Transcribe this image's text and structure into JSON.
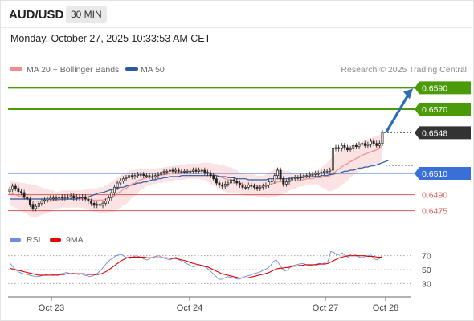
{
  "header": {
    "symbol": "AUD/USD",
    "timeframe": "30 MIN",
    "datetime": "Monday, October 27, 2025 10:33:53 AM CET"
  },
  "copyright": "Research © 2025 Trading Central",
  "colors": {
    "bollinger": "#f08c8c",
    "ma50": "#2b5a9e",
    "target": "#4a9a0a",
    "pivot": "#3a6fd8",
    "support": "#d85a5a",
    "last": "#333333",
    "arrow": "#2d6bb3",
    "rsi": "#6a8ee0",
    "rsi_ma": "#e00000"
  },
  "chart_data": [
    {
      "type": "candlestick",
      "title": "AUD/USD",
      "timeframe": "30 MIN",
      "legend": [
        {
          "name": "MA 20 + Bollinger Bands",
          "color": "#f08c8c"
        },
        {
          "name": "MA 50",
          "color": "#2b5a9e"
        }
      ],
      "x_ticks": [
        "Oct 23",
        "Oct 24",
        "Oct 27",
        "Oct 28"
      ],
      "ylim": [
        0.6462,
        0.66
      ],
      "levels": [
        {
          "value": 0.659,
          "label": "0.6590",
          "kind": "target",
          "color": "#4a9a0a"
        },
        {
          "value": 0.657,
          "label": "0.6570",
          "kind": "target",
          "color": "#4a9a0a"
        },
        {
          "value": 0.6548,
          "label": "0.6548",
          "kind": "last",
          "color": "#333333"
        },
        {
          "value": 0.651,
          "label": "0.6510",
          "kind": "pivot",
          "color": "#3a6fd8"
        },
        {
          "value": 0.649,
          "label": "0.6490",
          "kind": "support",
          "color": "#d85a5a"
        },
        {
          "value": 0.6475,
          "label": "0.6475",
          "kind": "support",
          "color": "#d85a5a"
        }
      ],
      "close": [
        0.6495,
        0.6498,
        0.6496,
        0.6493,
        0.6492,
        0.6488,
        0.6486,
        0.6481,
        0.6477,
        0.6479,
        0.6482,
        0.6484,
        0.6485,
        0.6486,
        0.6487,
        0.6487,
        0.6487,
        0.6488,
        0.6487,
        0.6488,
        0.6488,
        0.6489,
        0.6487,
        0.6488,
        0.6487,
        0.6488,
        0.6486,
        0.6484,
        0.6482,
        0.648,
        0.6481,
        0.648,
        0.6482,
        0.6484,
        0.6487,
        0.6492,
        0.6497,
        0.6501,
        0.6503,
        0.6505,
        0.6506,
        0.6508,
        0.6507,
        0.6508,
        0.6509,
        0.6509,
        0.6508,
        0.6508,
        0.6507,
        0.6507,
        0.6508,
        0.6509,
        0.6511,
        0.6512,
        0.6512,
        0.6513,
        0.6512,
        0.6513,
        0.6512,
        0.6512,
        0.6512,
        0.6512,
        0.6512,
        0.6513,
        0.6512,
        0.6513,
        0.6513,
        0.6511,
        0.651,
        0.6508,
        0.6505,
        0.6501,
        0.6499,
        0.6498,
        0.65,
        0.6501,
        0.6504,
        0.6503,
        0.6501,
        0.6499,
        0.6497,
        0.6497,
        0.6499,
        0.6498,
        0.6497,
        0.6496,
        0.6497,
        0.6498,
        0.6499,
        0.6502,
        0.6503,
        0.6508,
        0.6513,
        0.6505,
        0.65,
        0.6502,
        0.6504,
        0.6505,
        0.6506,
        0.6506,
        0.6507,
        0.6508,
        0.6508,
        0.6509,
        0.6509,
        0.651,
        0.651,
        0.6511,
        0.6512,
        0.6512,
        0.6513,
        0.6533,
        0.6534,
        0.6533,
        0.6536,
        0.6534,
        0.6532,
        0.6533,
        0.6536,
        0.6535,
        0.6537,
        0.6538,
        0.6536,
        0.6537,
        0.654,
        0.6538,
        0.6536,
        0.6538,
        0.6548
      ],
      "ma20": [
        0.6492,
        0.6491,
        0.649,
        0.6489,
        0.6488,
        0.6487,
        0.6486,
        0.6485,
        0.6484,
        0.6484,
        0.6484,
        0.6484,
        0.6484,
        0.6484,
        0.6484,
        0.6485,
        0.6485,
        0.6485,
        0.6486,
        0.6486,
        0.6486,
        0.6486,
        0.6486,
        0.6486,
        0.6486,
        0.6486,
        0.6486,
        0.6486,
        0.6485,
        0.6485,
        0.6485,
        0.6485,
        0.6485,
        0.6486,
        0.6487,
        0.6488,
        0.6489,
        0.6491,
        0.6493,
        0.6495,
        0.6496,
        0.6498,
        0.65,
        0.6501,
        0.6503,
        0.6504,
        0.6505,
        0.6506,
        0.6506,
        0.6507,
        0.6507,
        0.6508,
        0.6508,
        0.6509,
        0.6509,
        0.651,
        0.651,
        0.6511,
        0.6511,
        0.6511,
        0.6511,
        0.6512,
        0.6512,
        0.6512,
        0.6512,
        0.6512,
        0.6512,
        0.6512,
        0.6511,
        0.651,
        0.6509,
        0.6508,
        0.6507,
        0.6506,
        0.6505,
        0.6504,
        0.6504,
        0.6503,
        0.6502,
        0.6501,
        0.65,
        0.6499,
        0.6499,
        0.6499,
        0.6499,
        0.6498,
        0.6498,
        0.6498,
        0.6498,
        0.6499,
        0.65,
        0.6501,
        0.6502,
        0.6502,
        0.6502,
        0.6502,
        0.6503,
        0.6503,
        0.6503,
        0.6503,
        0.6504,
        0.6504,
        0.6505,
        0.6505,
        0.6505,
        0.6506,
        0.6506,
        0.6506,
        0.6507,
        0.6507,
        0.6508,
        0.651,
        0.6512,
        0.6514,
        0.6516,
        0.6518,
        0.6519,
        0.6521,
        0.6522,
        0.6524,
        0.6525,
        0.6527,
        0.6528,
        0.6529,
        0.653,
        0.6531,
        0.6532,
        0.6533,
        0.6536
      ],
      "bb_width": [
        0.0012,
        0.0012,
        0.0012,
        0.0013,
        0.0013,
        0.0014,
        0.0014,
        0.0015,
        0.0015,
        0.0015,
        0.0014,
        0.0013,
        0.0012,
        0.0011,
        0.001,
        0.0009,
        0.0008,
        0.0008,
        0.0008,
        0.0008,
        0.0008,
        0.0008,
        0.0008,
        0.0008,
        0.0008,
        0.0008,
        0.0009,
        0.001,
        0.001,
        0.0011,
        0.0011,
        0.0012,
        0.0012,
        0.0013,
        0.0013,
        0.0014,
        0.0015,
        0.0015,
        0.0015,
        0.0015,
        0.0015,
        0.0014,
        0.0013,
        0.0012,
        0.0011,
        0.001,
        0.0009,
        0.0008,
        0.0008,
        0.0007,
        0.0007,
        0.0007,
        0.0007,
        0.0007,
        0.0007,
        0.0007,
        0.0007,
        0.0007,
        0.0007,
        0.0007,
        0.0007,
        0.0007,
        0.0007,
        0.0007,
        0.0007,
        0.0007,
        0.0008,
        0.0008,
        0.0009,
        0.001,
        0.001,
        0.0011,
        0.0011,
        0.0012,
        0.0012,
        0.0012,
        0.0012,
        0.0011,
        0.0011,
        0.001,
        0.001,
        0.001,
        0.001,
        0.001,
        0.001,
        0.001,
        0.001,
        0.001,
        0.0011,
        0.0012,
        0.0012,
        0.0013,
        0.0013,
        0.0012,
        0.0011,
        0.001,
        0.0009,
        0.0008,
        0.0007,
        0.0006,
        0.0006,
        0.0006,
        0.0006,
        0.0006,
        0.0006,
        0.0006,
        0.0007,
        0.0009,
        0.0011,
        0.0013,
        0.0015,
        0.0016,
        0.0017,
        0.0017,
        0.0017,
        0.0017,
        0.0016,
        0.0015,
        0.0014,
        0.0014,
        0.0013,
        0.0013,
        0.0013,
        0.0013,
        0.0013,
        0.0013,
        0.0013,
        0.0013,
        0.0013,
        0.0014
      ],
      "ma50": [
        0.6486,
        0.6486,
        0.6486,
        0.6486,
        0.6486,
        0.6486,
        0.6486,
        0.6486,
        0.6486,
        0.6486,
        0.6486,
        0.6486,
        0.6486,
        0.6486,
        0.6486,
        0.6486,
        0.6486,
        0.6486,
        0.6486,
        0.6486,
        0.6486,
        0.6486,
        0.6486,
        0.6486,
        0.6487,
        0.6487,
        0.6488,
        0.6488,
        0.6489,
        0.649,
        0.6491,
        0.6492,
        0.6492,
        0.6493,
        0.6494,
        0.6495,
        0.6495,
        0.6496,
        0.6497,
        0.6497,
        0.6498,
        0.6499,
        0.6499,
        0.65,
        0.6501,
        0.6501,
        0.6502,
        0.6502,
        0.6503,
        0.6504,
        0.6504,
        0.6505,
        0.6505,
        0.6506,
        0.6506,
        0.6507,
        0.6507,
        0.6507,
        0.6507,
        0.6508,
        0.6508,
        0.6508,
        0.6508,
        0.6508,
        0.6508,
        0.6508,
        0.6508,
        0.6508,
        0.6508,
        0.6508,
        0.6508,
        0.6508,
        0.6507,
        0.6507,
        0.6507,
        0.6506,
        0.6506,
        0.6506,
        0.6505,
        0.6505,
        0.6505,
        0.6505,
        0.6504,
        0.6504,
        0.6504,
        0.6504,
        0.6504,
        0.6504,
        0.6504,
        0.6505,
        0.6505,
        0.6505,
        0.6505,
        0.6505,
        0.6505,
        0.6505,
        0.6505,
        0.6506,
        0.6506,
        0.6506,
        0.6506,
        0.6506,
        0.6507,
        0.6507,
        0.6507,
        0.6507,
        0.6507,
        0.6508,
        0.6508,
        0.6508,
        0.6509,
        0.6509,
        0.651,
        0.651,
        0.6511,
        0.6512,
        0.6512,
        0.6513,
        0.6513,
        0.6514,
        0.6515,
        0.6515,
        0.6516,
        0.6516,
        0.6517,
        0.6517,
        0.6518,
        0.6519,
        0.652,
        0.6521,
        0.6522
      ]
    },
    {
      "type": "line",
      "title": "RSI",
      "series": [
        {
          "name": "RSI",
          "color": "#6a8ee0",
          "values": [
            60,
            55,
            50,
            47,
            45,
            44,
            43,
            42,
            41,
            40,
            40,
            41,
            42,
            43,
            44,
            43,
            42,
            43,
            44,
            45,
            46,
            44,
            45,
            44,
            43,
            44,
            42,
            41,
            40,
            41,
            43,
            46,
            50,
            55,
            60,
            64,
            66,
            70,
            71,
            72,
            69,
            67,
            66,
            68,
            70,
            69,
            67,
            65,
            64,
            66,
            68,
            69,
            70,
            68,
            66,
            65,
            64,
            66,
            68,
            64,
            62,
            60,
            58,
            56,
            54,
            55,
            57,
            55,
            54,
            52,
            48,
            44,
            40,
            36,
            36,
            38,
            40,
            39,
            38,
            37,
            36,
            38,
            40,
            41,
            42,
            44,
            45,
            46,
            48,
            50,
            52,
            56,
            62,
            64,
            58,
            52,
            48,
            50,
            54,
            56,
            57,
            58,
            59,
            58,
            56,
            56,
            57,
            58,
            59,
            58,
            60,
            62,
            76,
            75,
            71,
            72,
            74,
            70,
            68,
            72,
            73,
            70,
            68,
            67,
            69,
            70,
            71,
            66,
            64,
            66,
            70
          ]
        },
        {
          "name": "9MA",
          "color": "#e00000",
          "values": [
            52,
            51,
            50,
            49,
            48,
            47,
            46,
            45,
            44,
            43,
            42,
            42,
            42,
            42,
            42,
            42,
            42,
            42,
            43,
            43,
            44,
            44,
            44,
            44,
            44,
            44,
            44,
            43,
            43,
            43,
            43,
            43,
            44,
            46,
            48,
            51,
            54,
            57,
            60,
            63,
            65,
            67,
            68,
            68,
            68,
            68,
            68,
            68,
            67,
            67,
            67,
            67,
            67,
            67,
            67,
            67,
            66,
            66,
            66,
            65,
            64,
            63,
            62,
            60,
            59,
            58,
            57,
            56,
            55,
            54,
            52,
            50,
            48,
            46,
            44,
            43,
            42,
            41,
            40,
            39,
            38,
            38,
            38,
            38,
            39,
            40,
            41,
            42,
            43,
            44,
            45,
            47,
            49,
            51,
            52,
            52,
            53,
            53,
            54,
            55,
            55,
            56,
            56,
            57,
            57,
            57,
            57,
            57,
            58,
            58,
            58,
            59,
            61,
            63,
            65,
            67,
            68,
            69,
            70,
            70,
            70,
            70,
            70,
            70,
            70,
            69,
            69,
            69,
            68,
            68,
            68
          ]
        }
      ],
      "y_ticks": [
        70,
        50,
        30
      ],
      "ylim": [
        20,
        80
      ]
    }
  ]
}
